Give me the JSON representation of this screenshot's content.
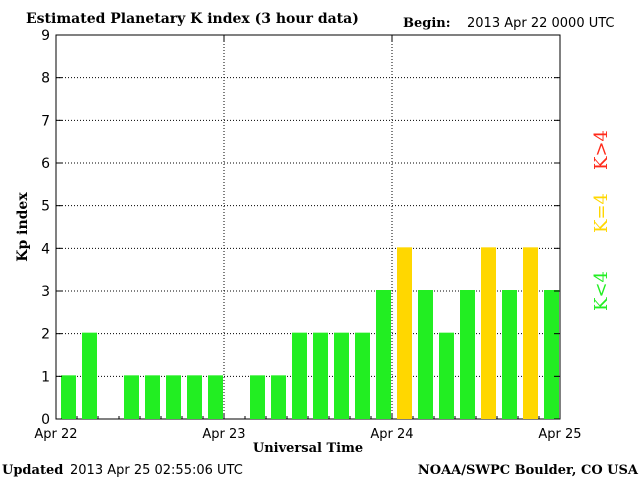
{
  "header": {
    "title": "Estimated Planetary K index (3 hour data)",
    "begin_label": "Begin:",
    "begin_value": "2013 Apr 22 0000 UTC"
  },
  "footer": {
    "updated_label": "Updated",
    "updated_value": "2013 Apr 25 02:55:06 UTC",
    "source": "NOAA/SWPC Boulder, CO USA"
  },
  "legend": {
    "above": "K>4",
    "equal": "K=4",
    "below": "K<4"
  },
  "colors": {
    "below": "#22ee22",
    "equal": "#ffd700",
    "above": "#ff2a1a"
  },
  "chart_data": {
    "type": "bar",
    "xlabel": "Universal Time",
    "ylabel": "Kp index",
    "ylim": [
      0,
      9
    ],
    "yticks": [
      0,
      1,
      2,
      3,
      4,
      5,
      6,
      7,
      8,
      9
    ],
    "grid": true,
    "xticks": [
      "Apr 22",
      "Apr 23",
      "Apr 24",
      "Apr 25"
    ],
    "categories": [
      "Apr 22 00",
      "Apr 22 03",
      "Apr 22 06",
      "Apr 22 09",
      "Apr 22 12",
      "Apr 22 15",
      "Apr 22 18",
      "Apr 22 21",
      "Apr 23 00",
      "Apr 23 03",
      "Apr 23 06",
      "Apr 23 09",
      "Apr 23 12",
      "Apr 23 15",
      "Apr 23 18",
      "Apr 23 21",
      "Apr 24 00",
      "Apr 24 03",
      "Apr 24 06",
      "Apr 24 09",
      "Apr 24 12",
      "Apr 24 15",
      "Apr 24 18",
      "Apr 24 21"
    ],
    "values": [
      1,
      2,
      0,
      1,
      1,
      1,
      1,
      1,
      0,
      1,
      1,
      2,
      2,
      2,
      2,
      3,
      4,
      3,
      2,
      3,
      4,
      3,
      4,
      3
    ]
  }
}
